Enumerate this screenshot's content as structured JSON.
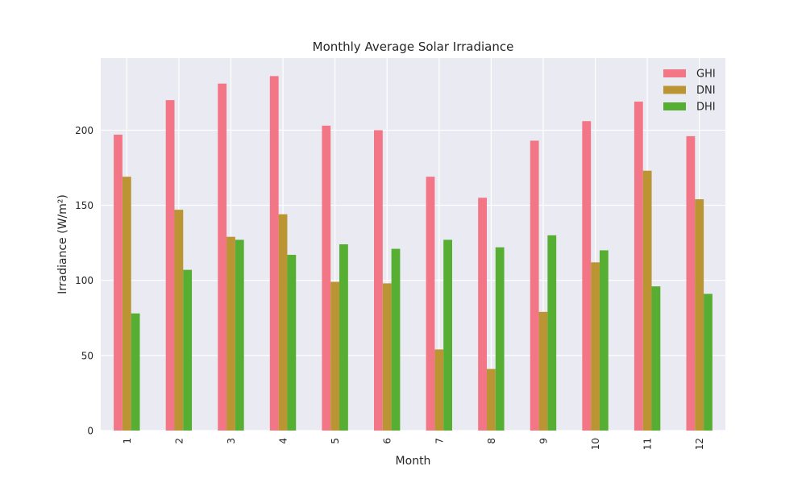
{
  "chart_data": {
    "type": "bar",
    "title": "Monthly Average Solar Irradiance",
    "xlabel": "Month",
    "ylabel": "Irradiance (W/m²)",
    "categories": [
      "1",
      "2",
      "3",
      "4",
      "5",
      "6",
      "7",
      "8",
      "9",
      "10",
      "11",
      "12"
    ],
    "series": [
      {
        "name": "GHI",
        "color": "#F37687",
        "values": [
          197,
          220,
          231,
          236,
          203,
          200,
          169,
          155,
          193,
          206,
          219,
          196
        ]
      },
      {
        "name": "DNI",
        "color": "#BB9434",
        "values": [
          169,
          147,
          129,
          144,
          99,
          98,
          54,
          41,
          79,
          112,
          173,
          154
        ]
      },
      {
        "name": "DHI",
        "color": "#56AE32",
        "values": [
          78,
          107,
          127,
          117,
          124,
          121,
          127,
          122,
          130,
          120,
          96,
          91
        ]
      }
    ],
    "ylim": [
      0,
      248
    ],
    "yticks": [
      0,
      50,
      100,
      150,
      200
    ],
    "grid": true,
    "legend_position": "top-right",
    "xtick_rotation": "vertical"
  }
}
